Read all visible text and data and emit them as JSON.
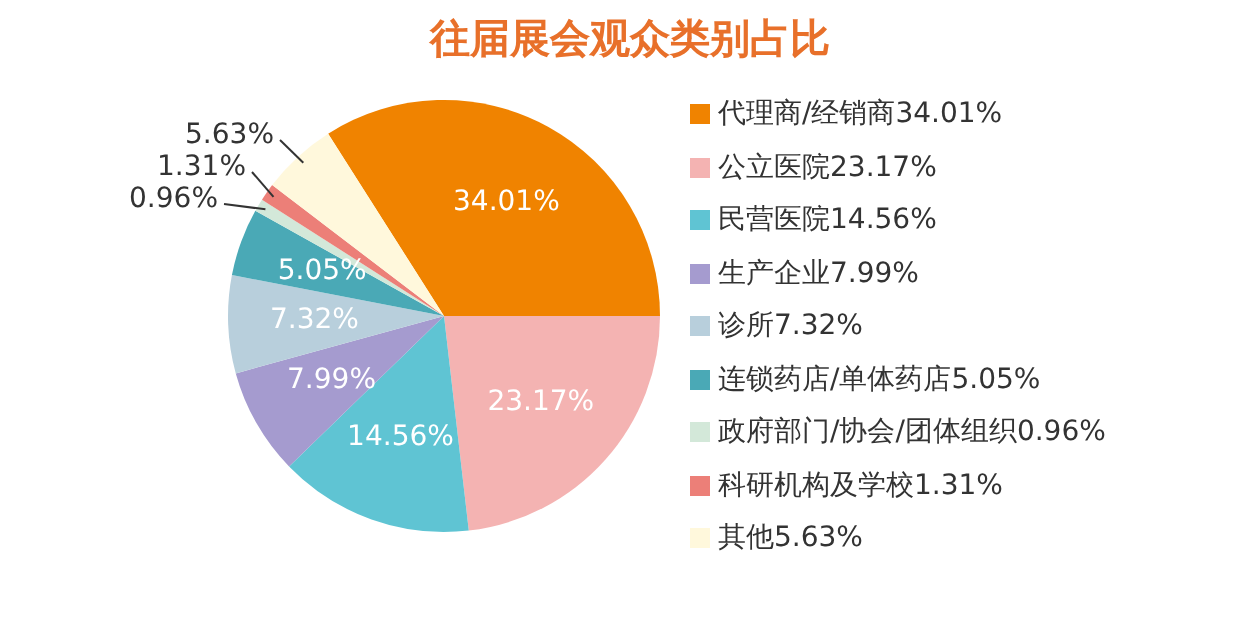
{
  "chart_data": {
    "type": "pie",
    "title": "往届展会观众类别占比",
    "categories": [
      "代理商/经销商",
      "公立医院",
      "民营医院",
      "生产企业",
      "诊所",
      "连锁药店/单体药店",
      "政府部门/协会/团体组织",
      "科研机构及学校",
      "其他"
    ],
    "values": [
      34.01,
      23.17,
      14.56,
      7.99,
      7.32,
      5.05,
      0.96,
      1.31,
      5.63
    ],
    "value_labels": [
      "34.01%",
      "23.17%",
      "14.56%",
      "7.99%",
      "7.32%",
      "5.05%",
      "0.96%",
      "1.31%",
      "5.63%"
    ],
    "colors": [
      "#f08300",
      "#f4b3b2",
      "#5fc4d3",
      "#a59bcf",
      "#b8cfdc",
      "#4aa9b6",
      "#d3e8d9",
      "#ec7f78",
      "#fff8dc"
    ],
    "legend": "right"
  }
}
